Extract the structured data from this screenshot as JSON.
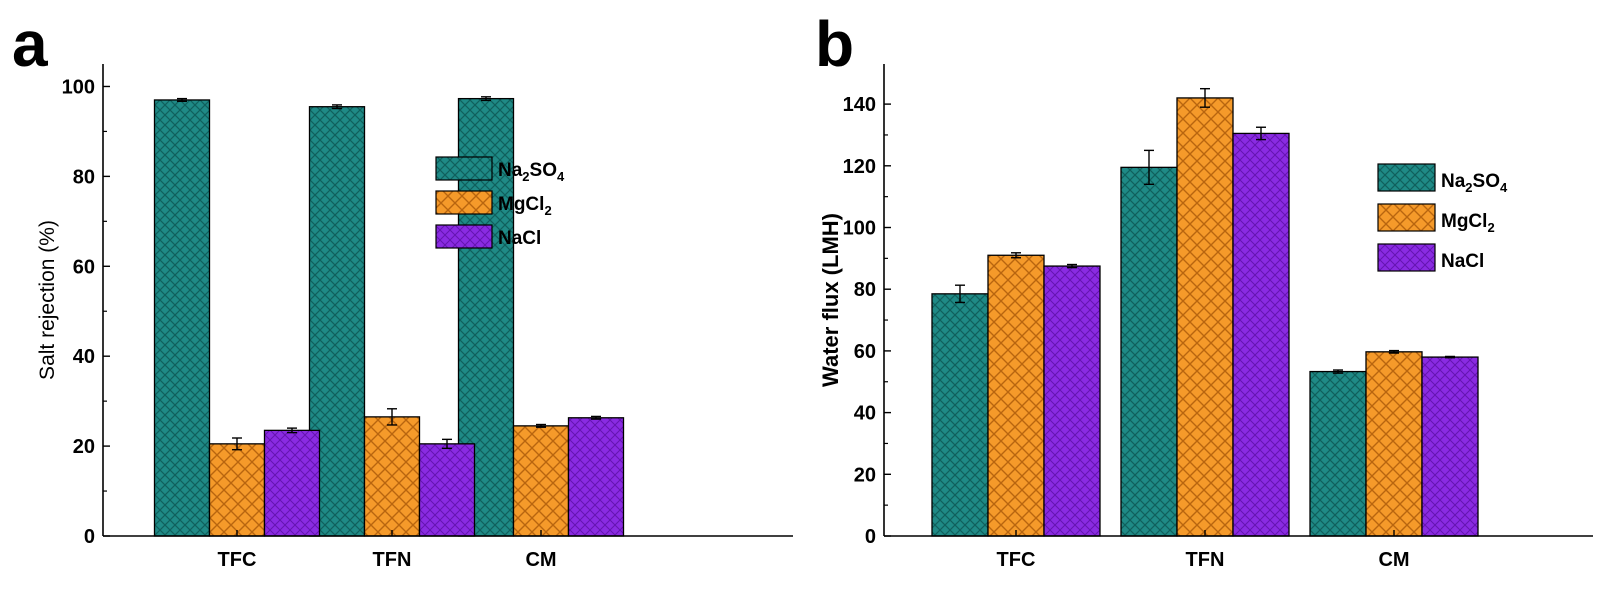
{
  "colors": {
    "teal": "#1f8a86",
    "teal_pattern": "#0f5f5c",
    "orange": "#f59a2a",
    "orange_pattern": "#b8650f",
    "purple": "#8a2be2",
    "purple_pattern": "#6414b0"
  },
  "chart_data": [
    {
      "panel": "a",
      "type": "bar",
      "ylabel": "Salt rejection (%)",
      "ylim": [
        0,
        105
      ],
      "yticks": [
        0,
        20,
        40,
        60,
        80,
        100
      ],
      "categories": [
        "TFC",
        "TFN",
        "CM"
      ],
      "legend_position": "upper-right",
      "series": [
        {
          "name_main": "Na",
          "name_sub1": "2",
          "name_mid": "SO",
          "name_sub2": "4",
          "color": "teal",
          "values": [
            97,
            95.5,
            97.3
          ],
          "errors": [
            0.3,
            0.4,
            0.4
          ]
        },
        {
          "name_main": "MgCl",
          "name_sub1": "2",
          "name_mid": "",
          "name_sub2": "",
          "color": "orange",
          "values": [
            20.5,
            26.5,
            24.5
          ],
          "errors": [
            1.3,
            1.8,
            0.3
          ]
        },
        {
          "name_main": "NaCl",
          "name_sub1": "",
          "name_mid": "",
          "name_sub2": "",
          "color": "purple",
          "values": [
            23.5,
            20.5,
            26.3
          ],
          "errors": [
            0.5,
            1.0,
            0.3
          ]
        }
      ]
    },
    {
      "panel": "b",
      "type": "bar",
      "ylabel": "Water flux (LMH)",
      "ylim": [
        0,
        153
      ],
      "yticks": [
        0,
        20,
        40,
        60,
        80,
        100,
        120,
        140
      ],
      "categories": [
        "TFC",
        "TFN",
        "CM"
      ],
      "legend_position": "right",
      "series": [
        {
          "name_main": "Na",
          "name_sub1": "2",
          "name_mid": "SO",
          "name_sub2": "4",
          "color": "teal",
          "values": [
            78.5,
            119.5,
            53.3
          ],
          "errors": [
            2.8,
            5.5,
            0.5
          ]
        },
        {
          "name_main": "MgCl",
          "name_sub1": "2",
          "name_mid": "",
          "name_sub2": "",
          "color": "orange",
          "values": [
            91,
            142,
            59.7
          ],
          "errors": [
            0.8,
            3.0,
            0.4
          ]
        },
        {
          "name_main": "NaCl",
          "name_sub1": "",
          "name_mid": "",
          "name_sub2": "",
          "color": "purple",
          "values": [
            87.5,
            130.5,
            58
          ],
          "errors": [
            0.5,
            2.0,
            0.2
          ]
        }
      ]
    }
  ]
}
